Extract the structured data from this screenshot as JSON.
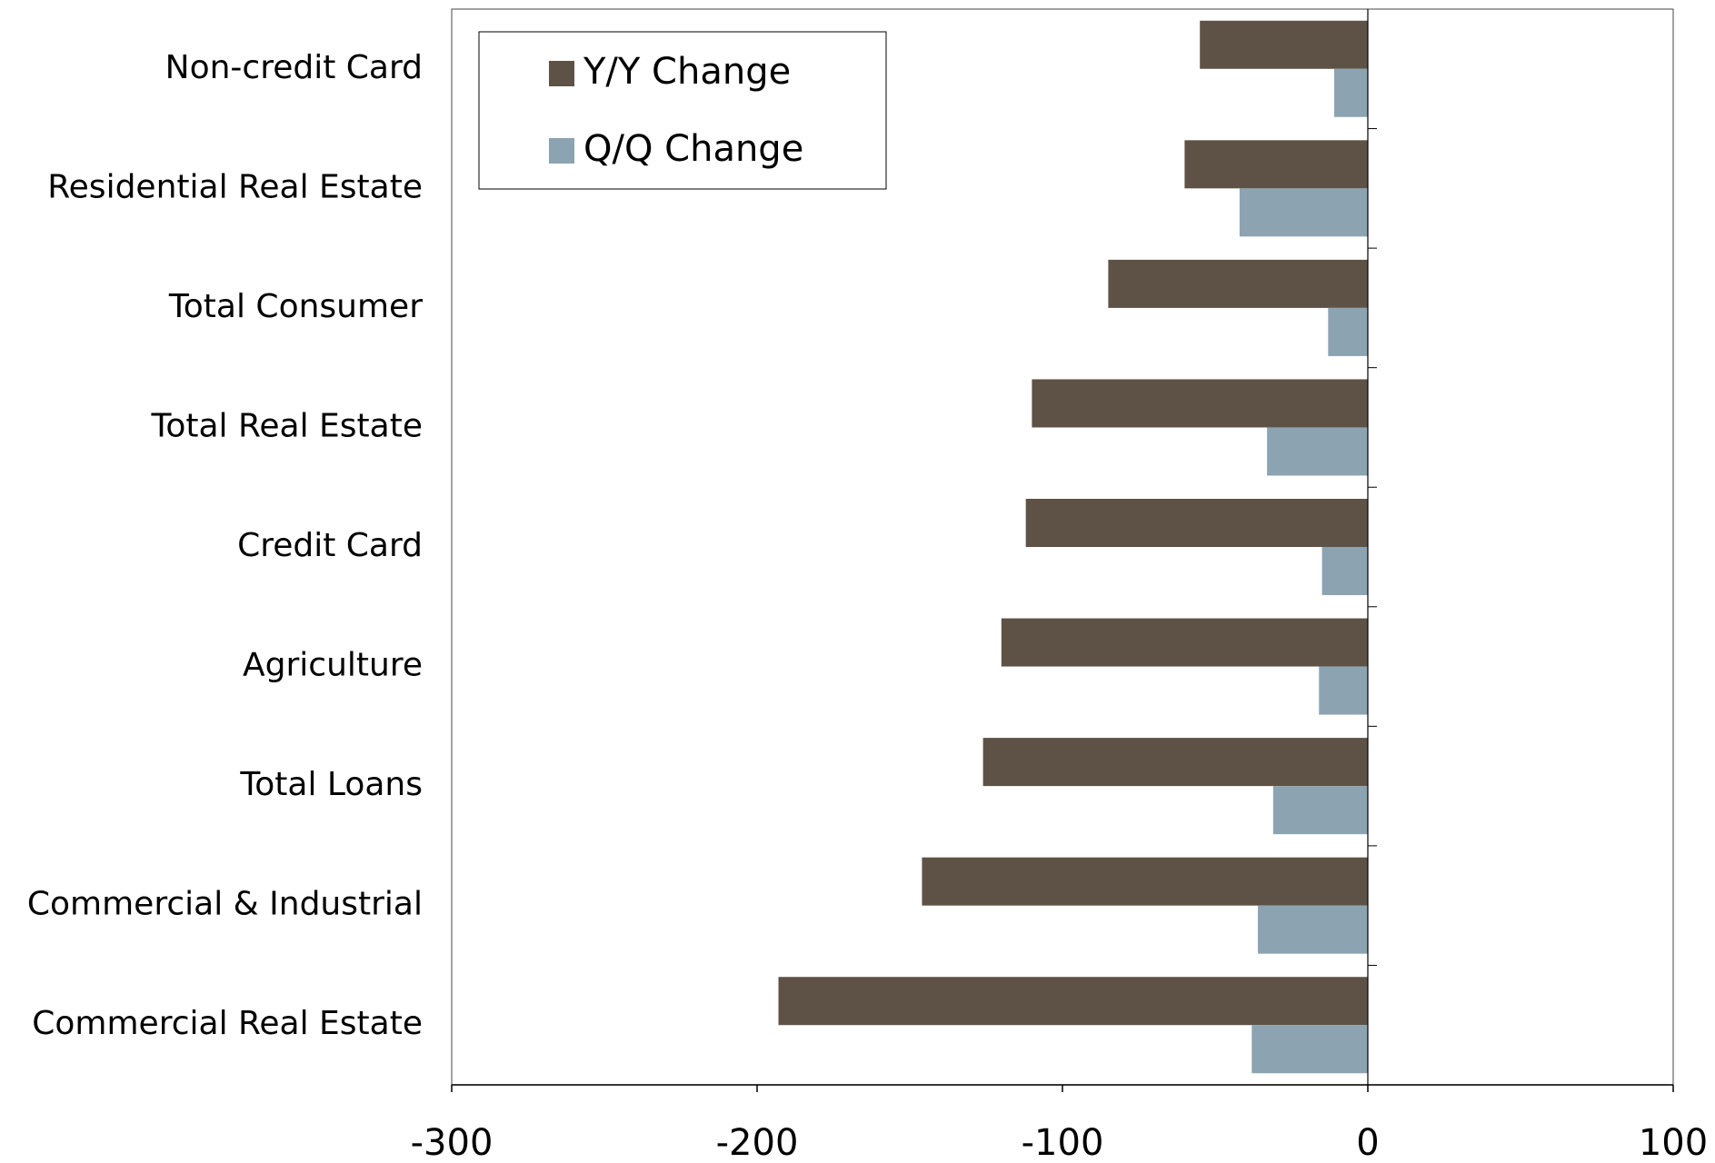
{
  "chart_data": {
    "type": "barh",
    "categories": [
      "Non-credit Card",
      "Residential Real Estate",
      "Total Consumer",
      "Total Real Estate",
      "Credit Card",
      "Agriculture",
      "Total Loans",
      "Commercial & Industrial",
      "Commercial Real Estate"
    ],
    "series": [
      {
        "name": "Y/Y Change",
        "color": "#5e5246",
        "values": [
          -55,
          -60,
          -85,
          -110,
          -112,
          -120,
          -126,
          -146,
          -193
        ]
      },
      {
        "name": "Q/Q Change",
        "color": "#8ca3b2",
        "values": [
          -11,
          -42,
          -13,
          -33,
          -15,
          -16,
          -31,
          -36,
          -38
        ]
      }
    ],
    "xlim": [
      -300,
      100
    ],
    "xticks": [
      -300,
      -200,
      -100,
      0,
      100
    ],
    "legend": "upper left"
  }
}
